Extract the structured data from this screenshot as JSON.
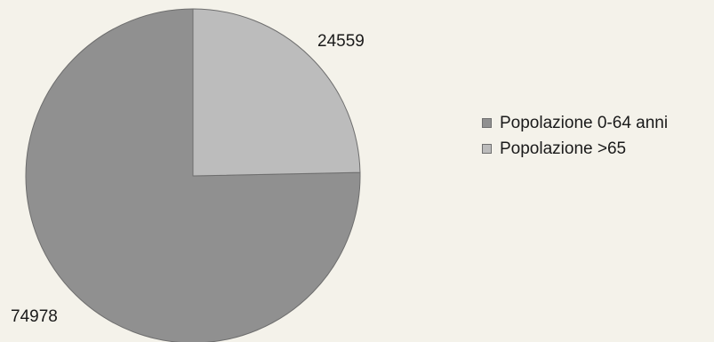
{
  "chart_data": {
    "type": "pie",
    "categories": [
      "Popolazione 0-64 anni",
      "Popolazione >65"
    ],
    "values": [
      74978,
      24559
    ],
    "data_labels": [
      "74978",
      "24559"
    ],
    "colors": [
      "#909090",
      "#bcbcbc"
    ],
    "legend_position": "right",
    "start_angle_deg": 0,
    "direction": "counterclockwise"
  }
}
